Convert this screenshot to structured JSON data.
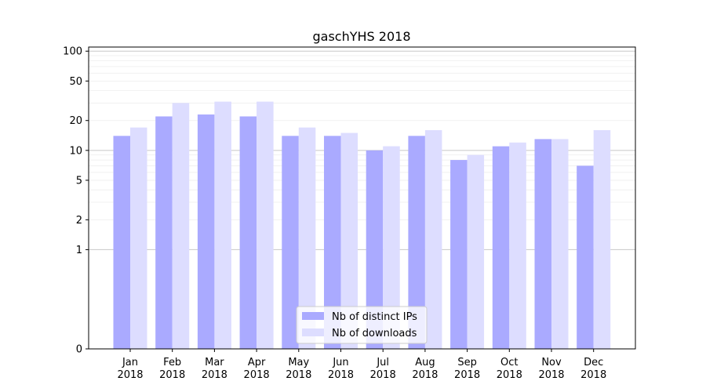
{
  "chart_data": {
    "type": "bar",
    "title": "gaschYHS 2018",
    "xlabel": "",
    "ylabel": "",
    "yscale": "symlog",
    "ylim": [
      0,
      110
    ],
    "yticks": [
      0,
      1,
      2,
      5,
      10,
      20,
      50,
      100
    ],
    "grid": "horizontal",
    "legend_position": "bottom-center",
    "categories": [
      [
        "Jan",
        "2018"
      ],
      [
        "Feb",
        "2018"
      ],
      [
        "Mar",
        "2018"
      ],
      [
        "Apr",
        "2018"
      ],
      [
        "May",
        "2018"
      ],
      [
        "Jun",
        "2018"
      ],
      [
        "Jul",
        "2018"
      ],
      [
        "Aug",
        "2018"
      ],
      [
        "Sep",
        "2018"
      ],
      [
        "Oct",
        "2018"
      ],
      [
        "Nov",
        "2018"
      ],
      [
        "Dec",
        "2018"
      ]
    ],
    "series": [
      {
        "name": "Nb of distinct IPs",
        "color": "#aaaaff",
        "values": [
          14,
          22,
          23,
          22,
          14,
          14,
          10,
          14,
          8,
          11,
          13,
          7
        ]
      },
      {
        "name": "Nb of downloads",
        "color": "#ddddff",
        "values": [
          17,
          30,
          31,
          31,
          17,
          15,
          11,
          16,
          9,
          12,
          13,
          16
        ]
      }
    ]
  }
}
